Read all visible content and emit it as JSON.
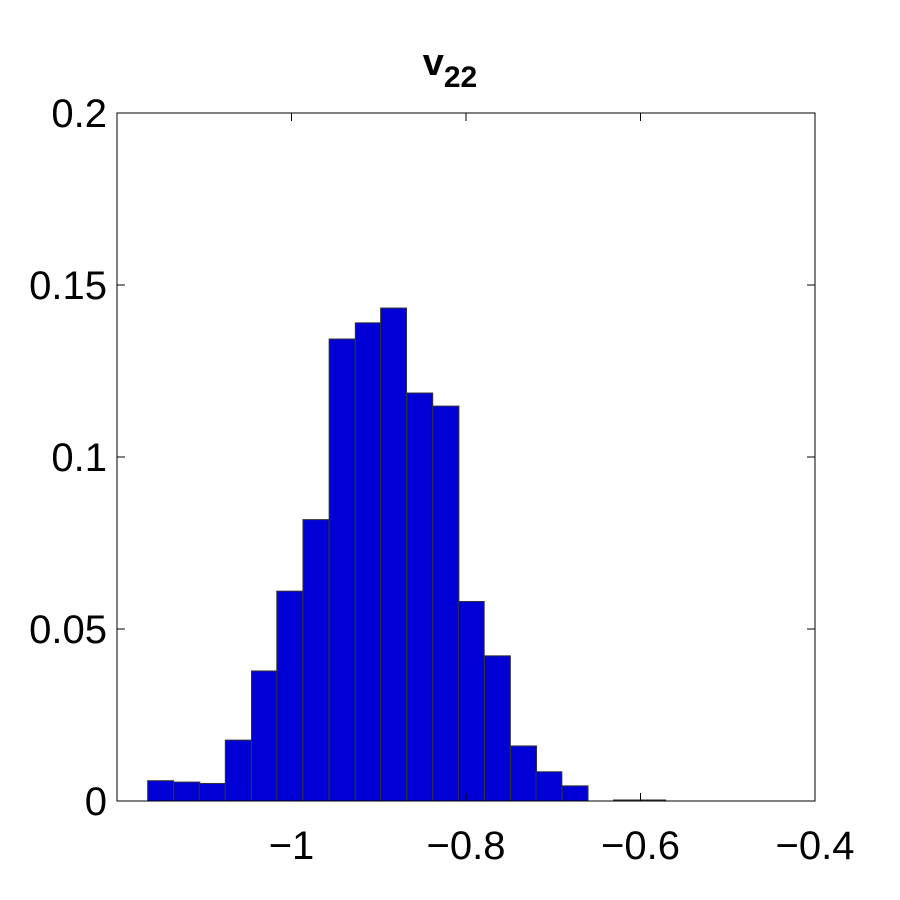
{
  "chart_data": {
    "type": "bar",
    "title": "v",
    "title_subscript": "22",
    "xlabel": "",
    "ylabel": "",
    "xlim": [
      -1.2,
      -0.4
    ],
    "ylim": [
      0,
      0.2
    ],
    "xticks": [
      -1,
      -0.8,
      -0.6,
      -0.4
    ],
    "xtick_labels": [
      "−1",
      "−0.8",
      "−0.6",
      "−0.4"
    ],
    "yticks": [
      0,
      0.05,
      0.1,
      0.15,
      0.2
    ],
    "ytick_labels": [
      "0",
      "0.05",
      "0.1",
      "0.15",
      "0.2"
    ],
    "grid": false,
    "bar_color": "#0000d6",
    "bin_width": 0.0297,
    "bin_centers": [
      -1.15,
      -1.12,
      -1.091,
      -1.061,
      -1.031,
      -1.002,
      -0.972,
      -0.942,
      -0.912,
      -0.883,
      -0.853,
      -0.823,
      -0.794,
      -0.764,
      -0.734,
      -0.705,
      -0.675,
      -0.645,
      -0.616,
      -0.586
    ],
    "values": [
      0.0059,
      0.0055,
      0.0051,
      0.0177,
      0.0378,
      0.061,
      0.0818,
      0.1343,
      0.139,
      0.1433,
      0.1186,
      0.1148,
      0.058,
      0.0422,
      0.016,
      0.0085,
      0.0044,
      0,
      0.0003,
      0.0003
    ]
  }
}
